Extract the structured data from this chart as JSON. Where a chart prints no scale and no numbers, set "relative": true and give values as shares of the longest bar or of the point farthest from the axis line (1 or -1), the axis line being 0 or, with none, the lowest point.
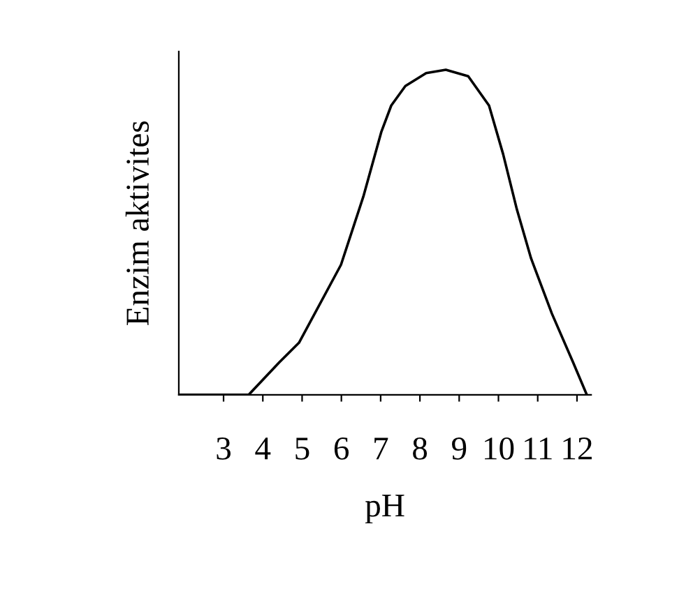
{
  "chart_data": {
    "type": "line",
    "xlabel": "pH",
    "ylabel": "Enzim aktivites",
    "relative": true,
    "xlim": [
      1.86,
      12.36
    ],
    "xticks": [
      3,
      4,
      5,
      6,
      7,
      8,
      9,
      10,
      11,
      12
    ],
    "color": "#000000",
    "x": [
      1.86,
      3.64,
      4.42,
      4.92,
      5.99,
      6.56,
      7.02,
      7.27,
      7.63,
      8.16,
      8.66,
      9.23,
      9.76,
      10.12,
      10.47,
      10.83,
      11.36,
      11.9,
      12.25
    ],
    "values": [
      0,
      0,
      0.1,
      0.16,
      0.4,
      0.61,
      0.81,
      0.89,
      0.95,
      0.99,
      1,
      0.98,
      0.89,
      0.74,
      0.57,
      0.42,
      0.25,
      0.1,
      0
    ]
  }
}
